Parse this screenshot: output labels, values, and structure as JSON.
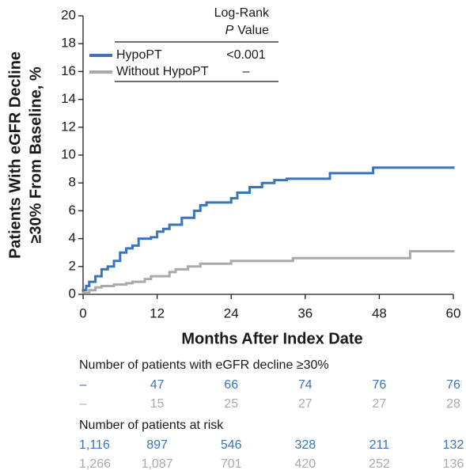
{
  "chart_data": {
    "type": "line",
    "step": "post",
    "xlabel": "Months After Index Date",
    "ylabel": [
      "Patients With eGFR Decline",
      "≥30% From Baseline, %"
    ],
    "xlim": [
      0,
      60
    ],
    "xticks": [
      0,
      12,
      24,
      36,
      48,
      60
    ],
    "ylim": [
      0,
      20
    ],
    "yticks": [
      0,
      2,
      4,
      6,
      8,
      10,
      12,
      14,
      16,
      18,
      20
    ],
    "legend_header": [
      "Log-Rank",
      "P",
      "Value"
    ],
    "series": [
      {
        "name": "HypoPT",
        "color": "#3a75b9",
        "p_value": "<0.001",
        "x": [
          0,
          0.5,
          1,
          2,
          3,
          4,
          5,
          6,
          7,
          8,
          9,
          11,
          12,
          13,
          14,
          16,
          18,
          19,
          20,
          24,
          25,
          27,
          29,
          31,
          33,
          40,
          47,
          60
        ],
        "values": [
          0.3,
          0.6,
          0.9,
          1.3,
          1.8,
          2.0,
          2.4,
          3.0,
          3.3,
          3.5,
          4.0,
          4.1,
          4.5,
          4.7,
          5.0,
          5.5,
          6.0,
          6.4,
          6.6,
          6.9,
          7.3,
          7.7,
          8.0,
          8.2,
          8.3,
          8.7,
          9.1,
          9.1
        ]
      },
      {
        "name": "Without HypoPT",
        "color": "#aaaaaa",
        "p_value": "–",
        "x": [
          0,
          1,
          2,
          3,
          5,
          7,
          8,
          10,
          11,
          14,
          15,
          17,
          19,
          24,
          34,
          53,
          60
        ],
        "values": [
          0.1,
          0.3,
          0.5,
          0.6,
          0.7,
          0.8,
          0.9,
          1.1,
          1.3,
          1.6,
          1.8,
          2.0,
          2.2,
          2.4,
          2.6,
          3.1,
          3.1
        ]
      }
    ],
    "tables": [
      {
        "title": "Number of patients with eGFR decline ≥30%",
        "rows": [
          [
            "–",
            "47",
            "66",
            "74",
            "76",
            "76"
          ],
          [
            "–",
            "15",
            "25",
            "27",
            "27",
            "28"
          ]
        ]
      },
      {
        "title": "Number of patients at risk",
        "rows": [
          [
            "1,116",
            "897",
            "546",
            "328",
            "211",
            "132"
          ],
          [
            "1,266",
            "1,087",
            "701",
            "420",
            "252",
            "136"
          ]
        ]
      }
    ]
  }
}
